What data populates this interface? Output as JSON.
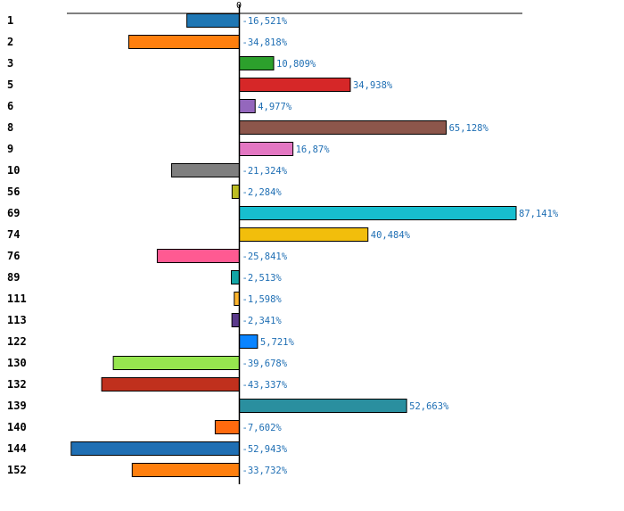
{
  "chart_data": {
    "type": "bar",
    "orientation": "horizontal",
    "title": "",
    "xlabel": "",
    "ylabel": "",
    "xlim": [
      -62,
      100
    ],
    "grid": false,
    "legend": "none",
    "x_ticks": [
      "0"
    ],
    "categories": [
      "1",
      "2",
      "3",
      "5",
      "6",
      "8",
      "9",
      "10",
      "56",
      "69",
      "74",
      "76",
      "89",
      "111",
      "113",
      "122",
      "130",
      "132",
      "139",
      "140",
      "144",
      "152"
    ],
    "values": [
      -16.521,
      -34.818,
      10.809,
      34.938,
      4.977,
      65.128,
      16.87,
      -21.324,
      -2.284,
      87.141,
      40.484,
      -25.841,
      -2.513,
      -1.598,
      -2.341,
      5.721,
      -39.678,
      -43.337,
      52.663,
      -7.602,
      -52.943,
      -33.732
    ],
    "value_labels": [
      "-16,521%",
      "-34,818%",
      "10,809%",
      "34,938%",
      "4,977%",
      "65,128%",
      "16,87%",
      "-21,324%",
      "-2,284%",
      "87,141%",
      "40,484%",
      "-25,841%",
      "-2,513%",
      "-1,598%",
      "-2,341%",
      "5,721%",
      "-39,678%",
      "-43,337%",
      "52,663%",
      "-7,602%",
      "-52,943%",
      "-33,732%"
    ],
    "colors": [
      "#1f77b4",
      "#ff7f0e",
      "#2ca02c",
      "#d62728",
      "#9467bd",
      "#8c564b",
      "#e377c2",
      "#7f7f7f",
      "#bcbd22",
      "#17becf",
      "#f2be0c",
      "#ff5a92",
      "#12a6a6",
      "#ffb62e",
      "#5b3a8c",
      "#0a84ff",
      "#96e64f",
      "#c0301d",
      "#2a8f9f",
      "#ff6a0e",
      "#1f6fb4",
      "#ff7f0e"
    ]
  }
}
